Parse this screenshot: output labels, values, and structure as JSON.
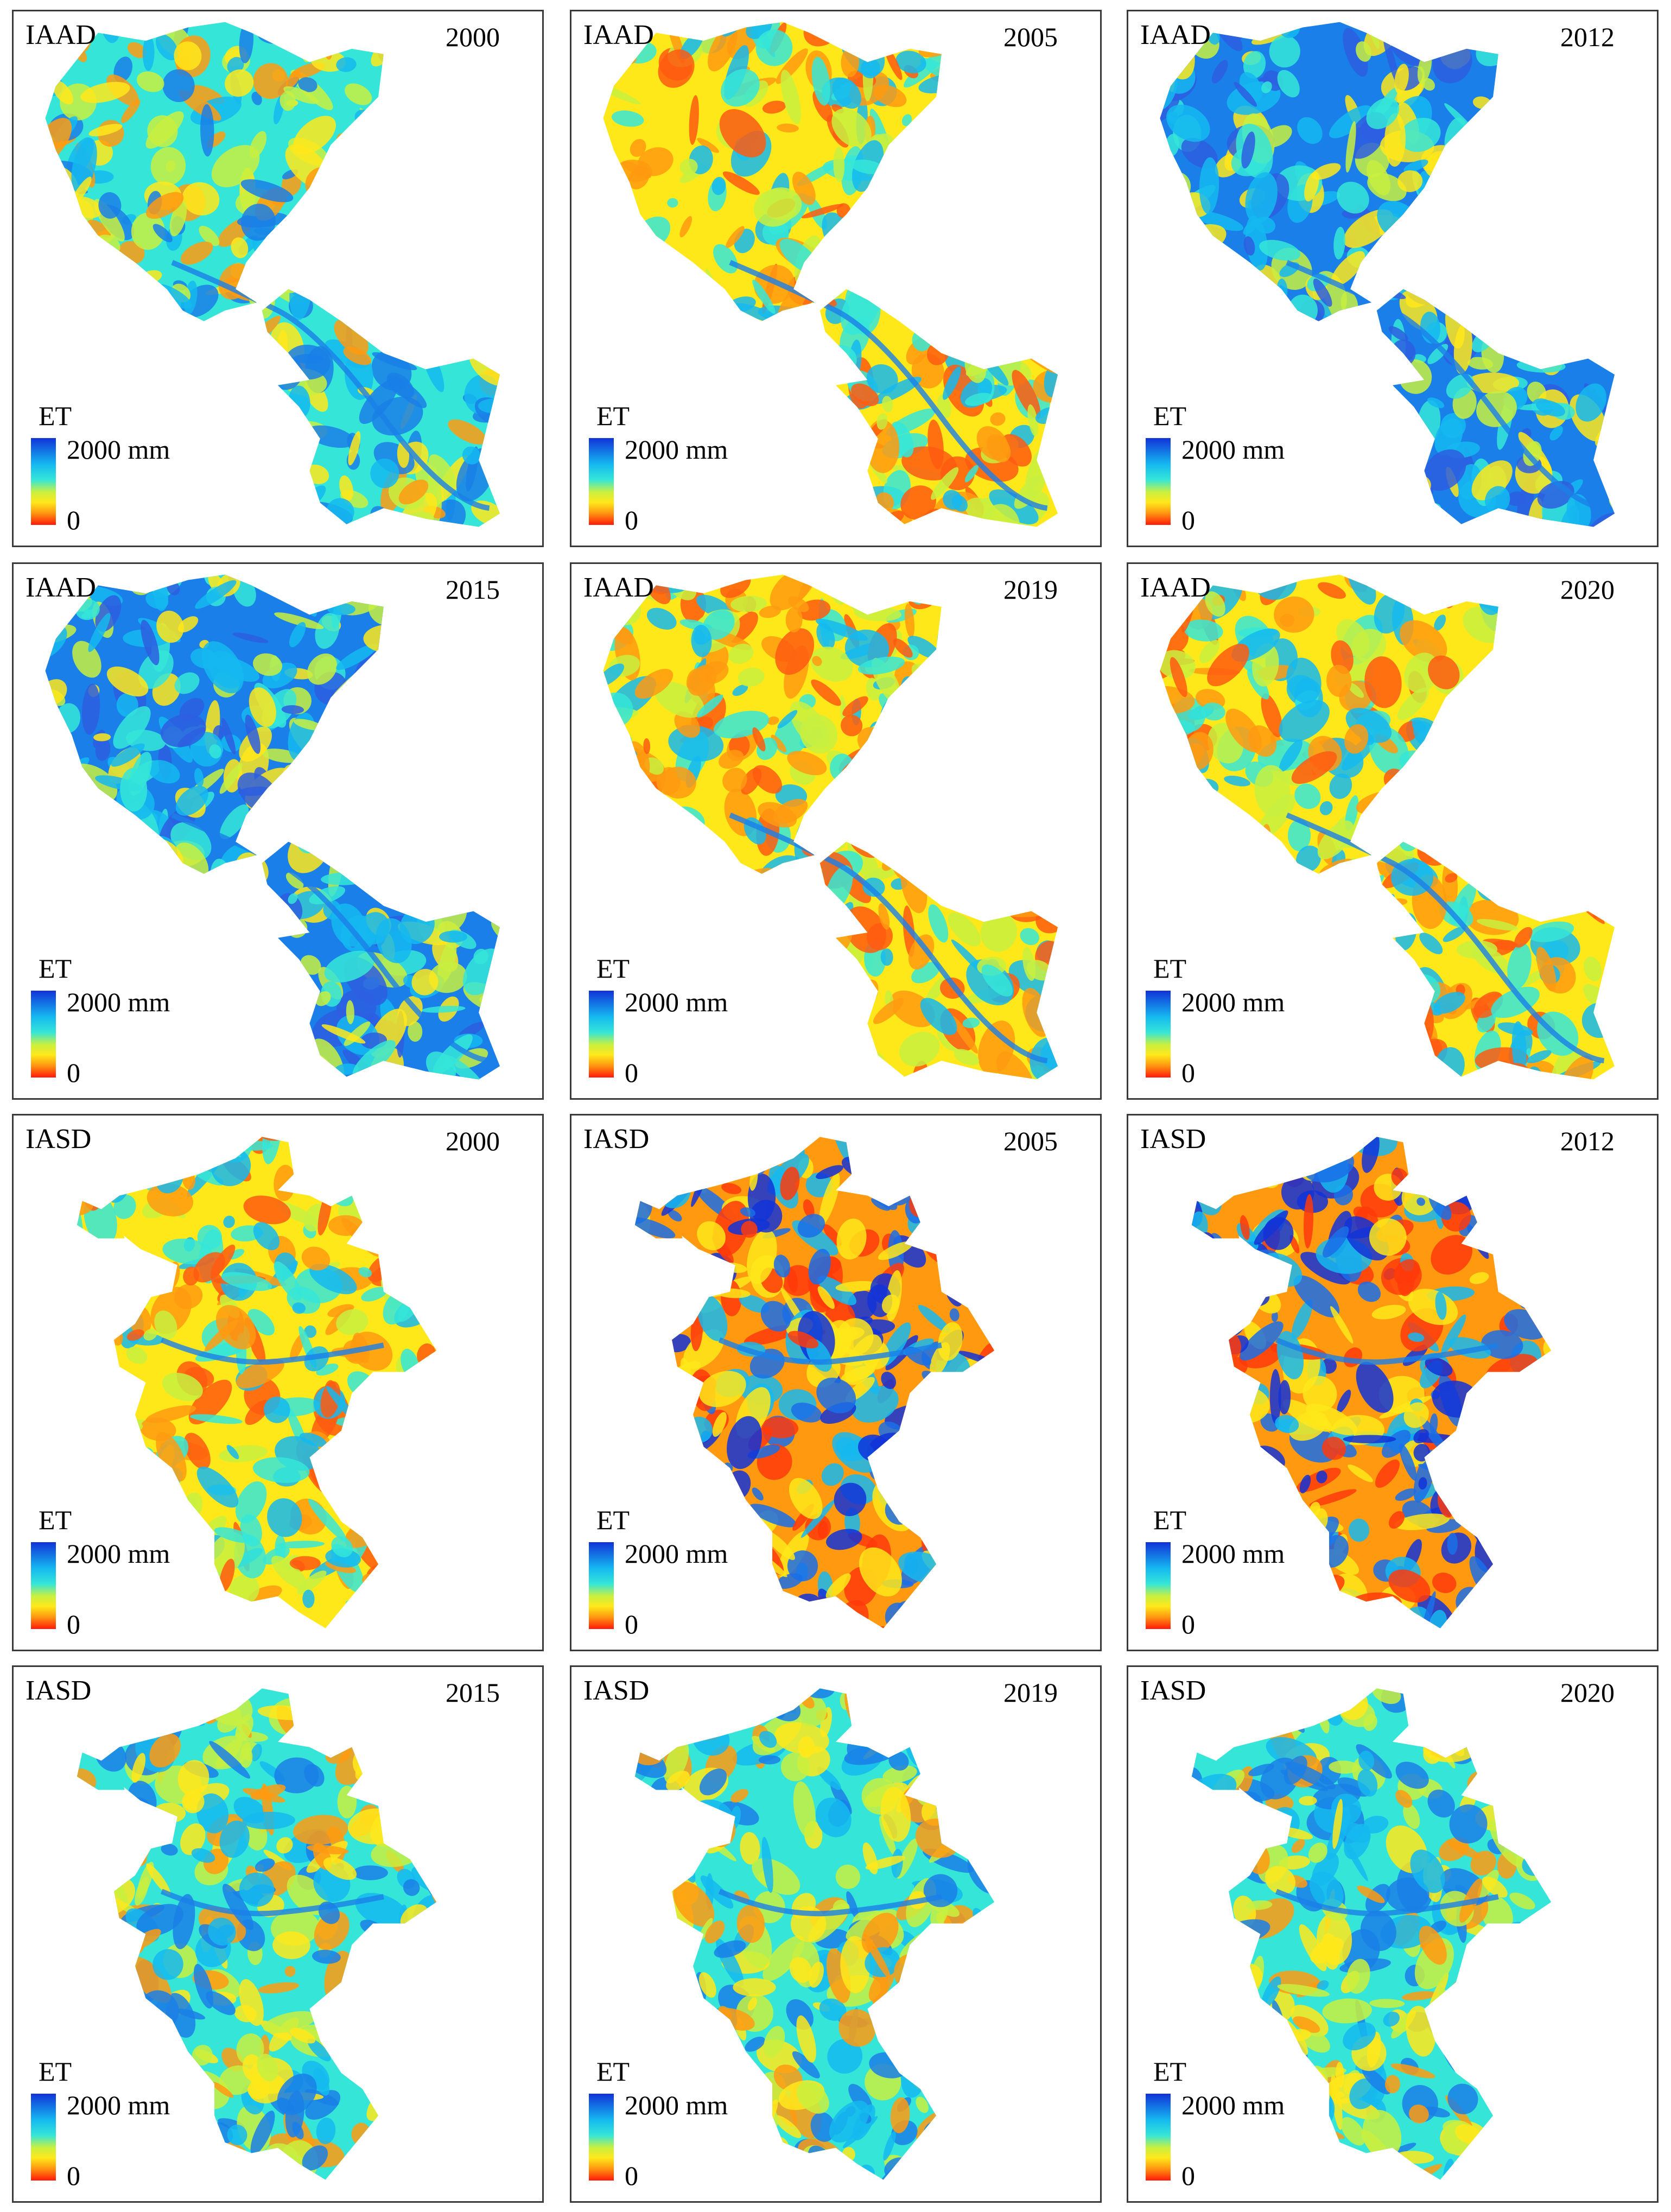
{
  "panels": [
    {
      "region": "IAAD",
      "year": "2000",
      "tone": "mid"
    },
    {
      "region": "IAAD",
      "year": "2005",
      "tone": "dry"
    },
    {
      "region": "IAAD",
      "year": "2012",
      "tone": "wet"
    },
    {
      "region": "IAAD",
      "year": "2015",
      "tone": "wet"
    },
    {
      "region": "IAAD",
      "year": "2019",
      "tone": "dry"
    },
    {
      "region": "IAAD",
      "year": "2020",
      "tone": "dry"
    },
    {
      "region": "IASD",
      "year": "2000",
      "tone": "dry"
    },
    {
      "region": "IASD",
      "year": "2005",
      "tone": "extreme"
    },
    {
      "region": "IASD",
      "year": "2012",
      "tone": "extreme"
    },
    {
      "region": "IASD",
      "year": "2015",
      "tone": "mid"
    },
    {
      "region": "IASD",
      "year": "2019",
      "tone": "mid"
    },
    {
      "region": "IASD",
      "year": "2020",
      "tone": "mid"
    }
  ],
  "legend": {
    "title": "ET",
    "max_label": "2000 mm",
    "min_label": "0",
    "max_value": 2000,
    "min_value": 0,
    "unit": "mm",
    "colors": [
      "#1232d8",
      "#15b8f0",
      "#35e6d8",
      "#c8f040",
      "#ffe81a",
      "#ff9a10",
      "#ff1a0a"
    ]
  }
}
